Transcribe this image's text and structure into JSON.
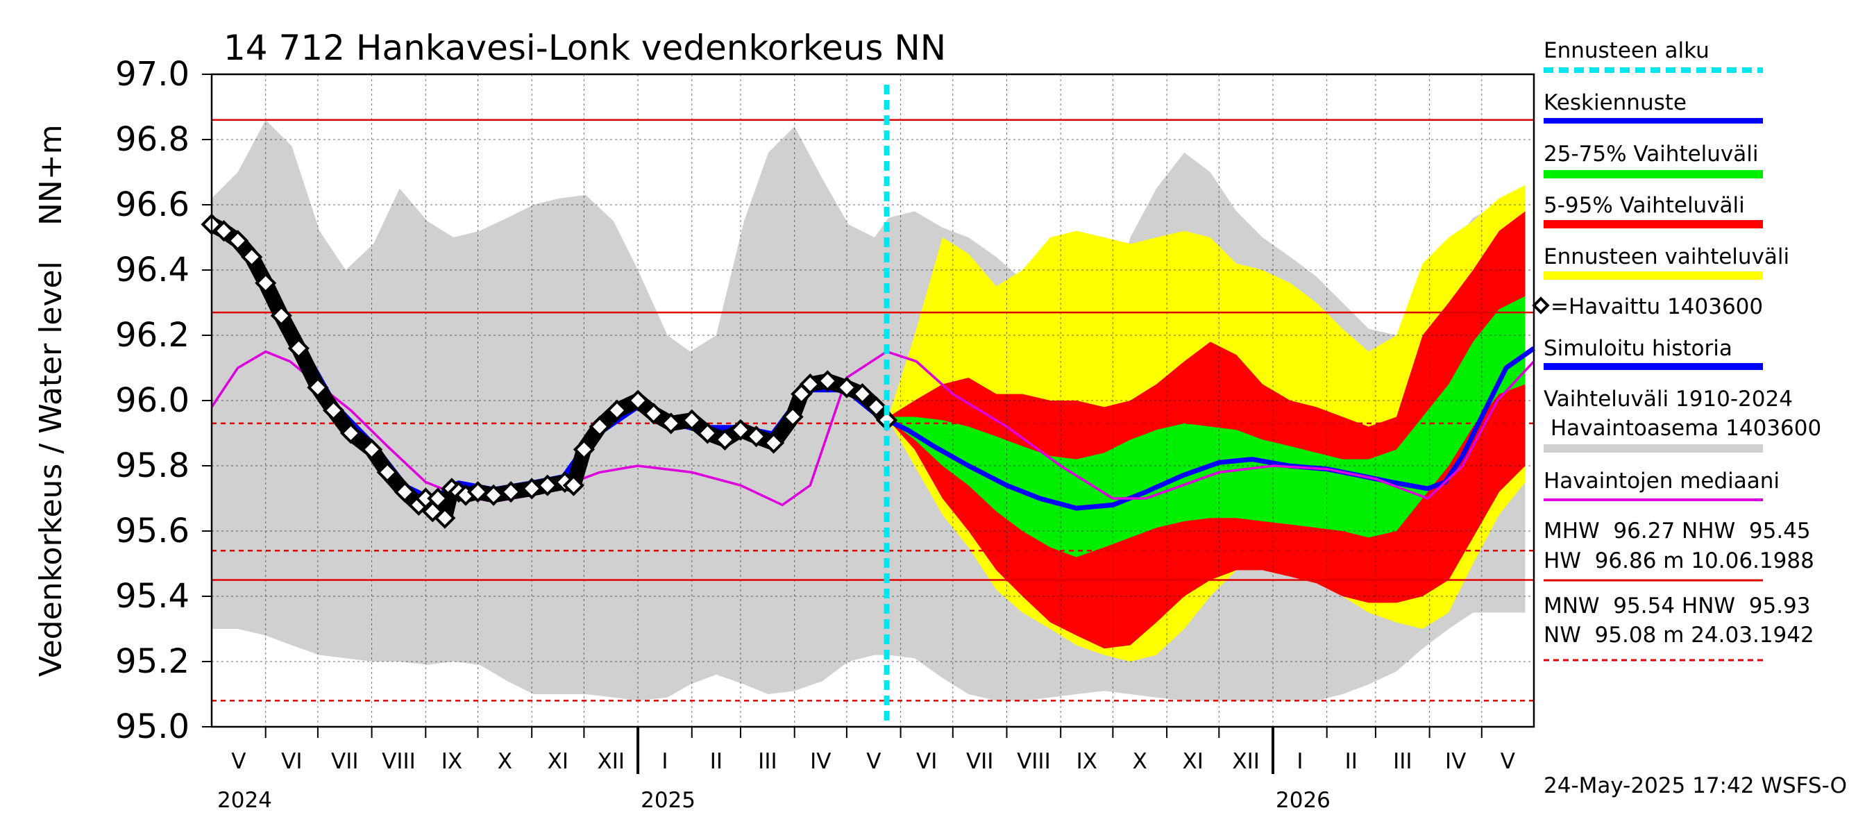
{
  "chart_data": {
    "type": "line",
    "title": "14 712 Hankavesi-Lonk vedenkorkeus NN",
    "ylabel": "Vedenkorkeus / Water level",
    "ylabel_unit": "NN+m",
    "ylim": [
      95.0,
      97.0
    ],
    "yticks": [
      "95.0",
      "95.2",
      "95.4",
      "95.6",
      "95.8",
      "96.0",
      "96.2",
      "96.4",
      "96.6",
      "96.8",
      "97.0"
    ],
    "x_range": [
      "2024-05-01",
      "2026-05-31"
    ],
    "month_labels": [
      "V",
      "VI",
      "VII",
      "VIII",
      "IX",
      "X",
      "XI",
      "XII",
      "I",
      "II",
      "III",
      "IV",
      "V",
      "VI",
      "VII",
      "VIII",
      "IX",
      "X",
      "XI",
      "XII",
      "I",
      "II",
      "III",
      "IV",
      "V"
    ],
    "year_labels": [
      "2024",
      "2025",
      "2026"
    ],
    "forecast_start": "2025-05-24",
    "grid": true,
    "legend_position": "right",
    "reference_lines": [
      {
        "name": "HW",
        "value": 96.86,
        "style": "solid"
      },
      {
        "name": "MHW",
        "value": 96.27,
        "style": "solid"
      },
      {
        "name": "HNW",
        "value": 95.93,
        "style": "dashed"
      },
      {
        "name": "MNW",
        "value": 95.54,
        "style": "dashed"
      },
      {
        "name": "NHW",
        "value": 95.45,
        "style": "solid"
      },
      {
        "name": "NW",
        "value": 95.08,
        "style": "dashed"
      }
    ],
    "x_days": [
      0,
      15,
      31,
      46,
      62,
      77,
      93,
      108,
      124,
      139,
      154,
      170,
      185,
      200,
      215,
      231,
      245,
      262,
      275,
      290,
      306,
      320,
      335,
      351,
      366,
      381,
      389,
      404,
      420,
      435,
      451,
      466,
      482,
      497,
      513,
      528,
      543,
      559,
      574,
      589,
      604,
      620,
      635,
      650,
      665,
      681,
      696,
      711,
      725,
      740,
      755
    ],
    "series": [
      {
        "name": "Havaittu 1403600",
        "color": "#000000",
        "kind": "observed",
        "x": [
          "2024-05-01",
          "2024-05-08",
          "2024-05-16",
          "2024-05-24",
          "2024-06-01",
          "2024-06-10",
          "2024-06-20",
          "2024-07-01",
          "2024-07-10",
          "2024-07-20",
          "2024-08-01",
          "2024-08-10",
          "2024-08-20",
          "2024-08-28",
          "2024-09-01",
          "2024-09-05",
          "2024-09-08",
          "2024-09-12",
          "2024-09-16",
          "2024-09-20",
          "2024-09-24",
          "2024-10-01",
          "2024-10-10",
          "2024-10-20",
          "2024-11-01",
          "2024-11-10",
          "2024-11-20",
          "2024-11-25",
          "2024-12-01",
          "2024-12-10",
          "2024-12-20",
          "2025-01-01",
          "2025-01-10",
          "2025-01-20",
          "2025-02-01",
          "2025-02-10",
          "2025-02-20",
          "2025-03-01",
          "2025-03-10",
          "2025-03-20",
          "2025-03-31",
          "2025-04-05",
          "2025-04-10",
          "2025-04-20",
          "2025-05-01",
          "2025-05-10",
          "2025-05-18",
          "2025-05-24"
        ],
        "values": [
          96.54,
          96.52,
          96.49,
          96.44,
          96.36,
          96.26,
          96.16,
          96.04,
          95.97,
          95.9,
          95.85,
          95.78,
          95.72,
          95.68,
          95.7,
          95.66,
          95.7,
          95.64,
          95.73,
          95.72,
          95.71,
          95.72,
          95.71,
          95.72,
          95.73,
          95.74,
          95.75,
          95.74,
          95.85,
          95.92,
          95.97,
          96.0,
          95.96,
          95.93,
          95.94,
          95.9,
          95.88,
          95.91,
          95.89,
          95.87,
          95.95,
          96.02,
          96.05,
          96.06,
          96.04,
          96.02,
          95.98,
          95.94
        ]
      },
      {
        "name": "Simuloitu historia",
        "color": "#0000ff",
        "kind": "simulated",
        "x": [
          "2024-05-01",
          "2024-05-16",
          "2024-06-01",
          "2024-06-20",
          "2024-07-10",
          "2024-08-01",
          "2024-08-20",
          "2024-09-05",
          "2024-09-20",
          "2024-10-10",
          "2024-11-01",
          "2024-11-20",
          "2024-12-10",
          "2025-01-01",
          "2025-01-20",
          "2025-02-10",
          "2025-03-01",
          "2025-03-20",
          "2025-04-10",
          "2025-05-01",
          "2025-05-24"
        ],
        "values": [
          96.53,
          96.5,
          96.37,
          96.17,
          95.98,
          95.86,
          95.73,
          95.69,
          95.74,
          95.72,
          95.74,
          95.76,
          95.91,
          95.99,
          95.94,
          95.91,
          95.91,
          95.89,
          96.04,
          96.04,
          95.94
        ]
      },
      {
        "name": "Keskiennuste",
        "color": "#0000ff",
        "kind": "forecast",
        "x": [
          "2025-05-24",
          "2025-06-05",
          "2025-06-20",
          "2025-07-10",
          "2025-08-01",
          "2025-08-20",
          "2025-09-10",
          "2025-10-01",
          "2025-10-20",
          "2025-11-10",
          "2025-12-01",
          "2025-12-20",
          "2026-01-10",
          "2026-02-01",
          "2026-02-20",
          "2026-03-10",
          "2026-03-31",
          "2026-04-10",
          "2026-04-20",
          "2026-05-01",
          "2026-05-15",
          "2026-05-31"
        ],
        "values": [
          95.94,
          95.91,
          95.86,
          95.8,
          95.74,
          95.7,
          95.67,
          95.68,
          95.72,
          95.77,
          95.81,
          95.82,
          95.8,
          95.79,
          95.77,
          95.75,
          95.73,
          95.75,
          95.83,
          95.95,
          96.1,
          96.16
        ]
      },
      {
        "name": "Havaintojen mediaani",
        "color": "#dd00dd",
        "kind": "median",
        "x": [
          "2024-05-01",
          "2024-05-16",
          "2024-06-01",
          "2024-06-15",
          "2024-07-01",
          "2024-07-20",
          "2024-08-10",
          "2024-09-01",
          "2024-09-20",
          "2024-10-10",
          "2024-11-01",
          "2024-11-20",
          "2024-12-10",
          "2025-01-01",
          "2025-02-01",
          "2025-03-01",
          "2025-03-25",
          "2025-04-10",
          "2025-05-01",
          "2025-05-24",
          "2025-06-10",
          "2025-07-01",
          "2025-08-01",
          "2025-09-01",
          "2025-10-01",
          "2025-10-20",
          "2025-11-10",
          "2025-12-01",
          "2026-01-01",
          "2026-02-01",
          "2026-03-01",
          "2026-03-31",
          "2026-04-20",
          "2026-05-10",
          "2026-05-31"
        ],
        "values": [
          95.98,
          96.1,
          96.15,
          96.12,
          96.05,
          95.97,
          95.86,
          95.75,
          95.71,
          95.69,
          95.71,
          95.74,
          95.78,
          95.8,
          95.78,
          95.74,
          95.68,
          95.74,
          96.07,
          96.15,
          96.12,
          96.02,
          95.92,
          95.8,
          95.7,
          95.7,
          95.74,
          95.78,
          95.8,
          95.79,
          95.76,
          95.7,
          95.8,
          96.0,
          96.12
        ]
      }
    ],
    "bands": [
      {
        "name": "Vaihteluväli 1910-2024 Havaintoasema 1403600",
        "color": "#d0d0d0",
        "upper": [
          96.62,
          96.7,
          96.86,
          96.78,
          96.52,
          96.4,
          96.48,
          96.65,
          96.55,
          96.5,
          96.52,
          96.56,
          96.6,
          96.62,
          96.63,
          96.55,
          96.4,
          96.2,
          96.15,
          96.2,
          96.55,
          96.76,
          96.84,
          96.68,
          96.54,
          96.5,
          96.56,
          96.58,
          96.53,
          96.5,
          96.44,
          96.37,
          96.26,
          96.2,
          96.2,
          96.5,
          96.65,
          96.76,
          96.7,
          96.58,
          96.5,
          96.44,
          96.38,
          96.3,
          96.22,
          96.2,
          96.24,
          96.46,
          96.56,
          96.6,
          96.62
        ],
        "lower": [
          95.3,
          95.3,
          95.28,
          95.25,
          95.22,
          95.21,
          95.2,
          95.2,
          95.19,
          95.2,
          95.19,
          95.14,
          95.1,
          95.1,
          95.1,
          95.09,
          95.08,
          95.09,
          95.13,
          95.16,
          95.13,
          95.1,
          95.11,
          95.14,
          95.2,
          95.22,
          95.22,
          95.21,
          95.15,
          95.1,
          95.08,
          95.08,
          95.09,
          95.1,
          95.11,
          95.1,
          95.09,
          95.08,
          95.08,
          95.08,
          95.08,
          95.08,
          95.08,
          95.1,
          95.13,
          95.17,
          95.24,
          95.3,
          95.35,
          95.35,
          95.35
        ]
      },
      {
        "name": "Ennusteen vaihteluväli",
        "color": "#ffff00",
        "x_start_index": 26,
        "upper": [
          95.95,
          96.2,
          96.5,
          96.45,
          96.35,
          96.4,
          96.5,
          96.52,
          96.5,
          96.48,
          96.5,
          96.52,
          96.5,
          96.42,
          96.4,
          96.36,
          96.3,
          96.22,
          96.15,
          96.2,
          96.42,
          96.5,
          96.55,
          96.62,
          96.66
        ],
        "lower": [
          95.94,
          95.8,
          95.65,
          95.55,
          95.42,
          95.35,
          95.3,
          95.25,
          95.22,
          95.2,
          95.22,
          95.3,
          95.4,
          95.48,
          95.5,
          95.48,
          95.45,
          95.4,
          95.35,
          95.32,
          95.3,
          95.35,
          95.5,
          95.65,
          95.75
        ]
      },
      {
        "name": "5-95% Vaihteluväli",
        "color": "#ff0000",
        "x_start_index": 26,
        "upper": [
          95.95,
          96.0,
          96.05,
          96.07,
          96.02,
          96.02,
          96.0,
          96.0,
          95.98,
          96.0,
          96.05,
          96.12,
          96.18,
          96.14,
          96.05,
          96.0,
          95.98,
          95.95,
          95.92,
          95.95,
          96.2,
          96.3,
          96.4,
          96.52,
          96.58
        ],
        "lower": [
          95.94,
          95.85,
          95.7,
          95.6,
          95.48,
          95.4,
          95.32,
          95.28,
          95.24,
          95.25,
          95.32,
          95.4,
          95.45,
          95.48,
          95.48,
          95.46,
          95.44,
          95.4,
          95.38,
          95.38,
          95.4,
          95.45,
          95.58,
          95.72,
          95.8
        ]
      },
      {
        "name": "25-75% Vaihteluväli",
        "color": "#00ee00",
        "x_start_index": 26,
        "upper": [
          95.95,
          95.95,
          95.94,
          95.92,
          95.89,
          95.86,
          95.83,
          95.82,
          95.84,
          95.88,
          95.91,
          95.93,
          95.92,
          95.91,
          95.88,
          95.86,
          95.84,
          95.82,
          95.82,
          95.85,
          95.95,
          96.05,
          96.18,
          96.28,
          96.32
        ],
        "lower": [
          95.94,
          95.88,
          95.8,
          95.74,
          95.66,
          95.6,
          95.55,
          95.52,
          95.55,
          95.58,
          95.61,
          95.63,
          95.64,
          95.64,
          95.63,
          95.62,
          95.61,
          95.6,
          95.58,
          95.6,
          95.7,
          95.8,
          95.92,
          96.02,
          96.05
        ]
      }
    ]
  },
  "legend": {
    "forecast_start": "Ennusteen alku",
    "mean_forecast": "Keskiennuste",
    "range_25_75": "25-75% Vaihteluväli",
    "range_5_95": "5-95% Vaihteluväli",
    "forecast_range": "Ennusteen vaihteluväli",
    "observed": "=Havaittu 1403600",
    "simulated": "Simuloitu historia",
    "historic_range_1": "Vaihteluväli 1910-2024",
    "historic_range_2": " Havaintoasema 1403600",
    "median": "Havaintojen mediaani",
    "stats_1": "MHW  96.27 NHW  95.45",
    "stats_2": "HW  96.86 m 10.06.1988",
    "stats_3": "MNW  95.54 HNW  95.93",
    "stats_4": "NW  95.08 m 24.03.1942"
  },
  "colors": {
    "forecast_line": "#00e5ee",
    "mean": "#0000ff",
    "p25_75": "#00ee00",
    "p5_95": "#ff0000",
    "forecast_range": "#ffff00",
    "historic": "#d0d0d0",
    "median": "#dd00dd",
    "reference": "#e00000"
  },
  "footer": "24-May-2025 17:42 WSFS-O"
}
